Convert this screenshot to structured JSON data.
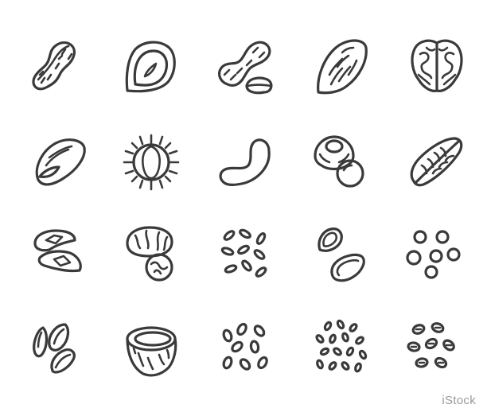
{
  "watermark": {
    "text": "iStock"
  },
  "style": {
    "stroke": "#3a3a3a",
    "background": "#ffffff"
  },
  "icons": [
    "peanut-icon",
    "hazelnut-icon",
    "peanut-kernel-icon",
    "almond-icon",
    "walnut-icon",
    "pistachio-icon",
    "chestnut-icon",
    "cashew-icon",
    "macadamia-icon",
    "pecan-icon",
    "brazil-nut-icon",
    "nutmeg-icon",
    "rice-grains-icon",
    "pumpkin-seeds-icon",
    "peas-icon",
    "sunflower-seeds-icon",
    "coconut-icon",
    "pine-nuts-icon",
    "sesame-seeds-icon",
    "beans-icon"
  ]
}
